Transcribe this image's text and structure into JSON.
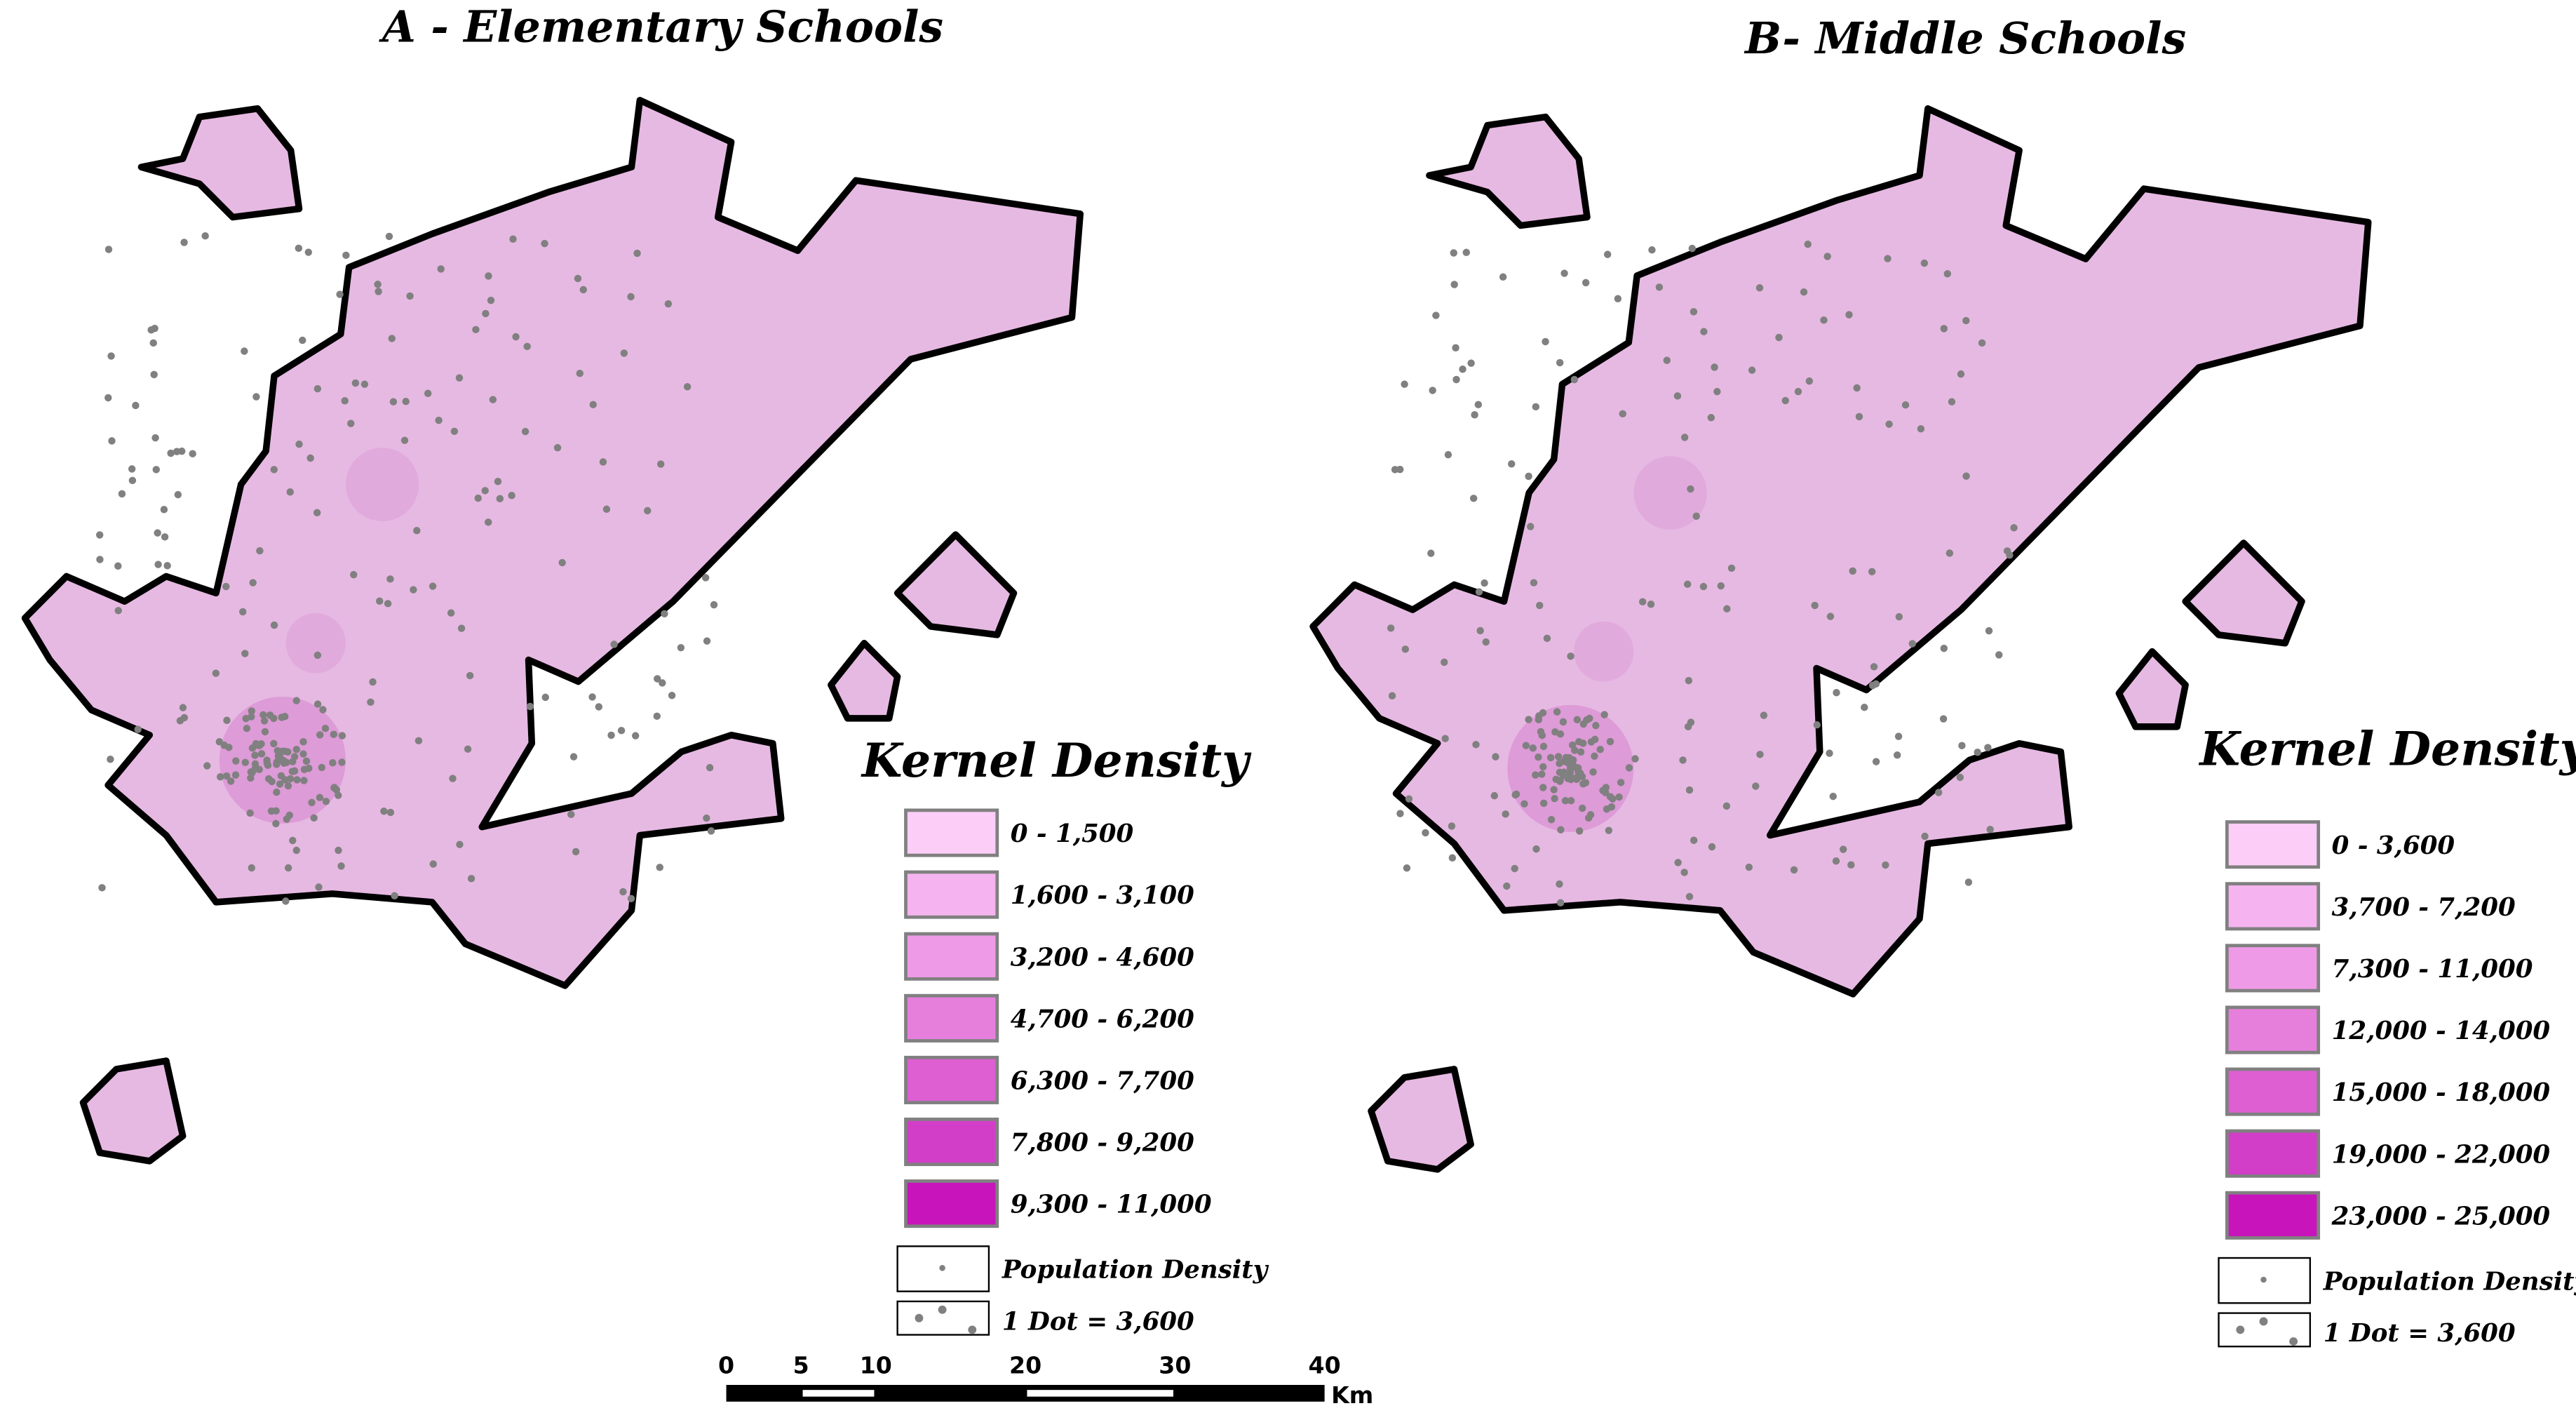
{
  "panels": [
    {
      "title": "A - Elementary Schools",
      "legend": {
        "title": "Kernel Density",
        "classes": [
          {
            "label": "0 - 1,500",
            "color": "#fbcdf7"
          },
          {
            "label": "1,600 - 3,100",
            "color": "#f5b4ef"
          },
          {
            "label": "3,200 - 4,600",
            "color": "#ee9ae6"
          },
          {
            "label": "4,700 - 6,200",
            "color": "#e67fdc"
          },
          {
            "label": "6,300 - 7,700",
            "color": "#dd5fd2"
          },
          {
            "label": "7,800 - 9,200",
            "color": "#d23ec7"
          },
          {
            "label": "9,300 - 11,000",
            "color": "#c814bb"
          }
        ],
        "dot_label": "Population Density",
        "dot_value": "1 Dot = 3,600"
      }
    },
    {
      "title": "B- Middle Schools",
      "legend": {
        "title": "Kernel Density",
        "classes": [
          {
            "label": "0 - 3,600",
            "color": "#fbcdf7"
          },
          {
            "label": "3,700 - 7,200",
            "color": "#f5b4ef"
          },
          {
            "label": "7,300 - 11,000",
            "color": "#ee9ae6"
          },
          {
            "label": "12,000 - 14,000",
            "color": "#e67fdc"
          },
          {
            "label": "15,000 - 18,000",
            "color": "#dd5fd2"
          },
          {
            "label": "19,000 - 22,000",
            "color": "#d23ec7"
          },
          {
            "label": "23,000 - 25,000",
            "color": "#c814bb"
          }
        ],
        "dot_label": "Population Density",
        "dot_value": "1 Dot = 3,600"
      }
    }
  ],
  "scale_bar": {
    "ticks": [
      0,
      5,
      10,
      20,
      30,
      40
    ],
    "unit": "Km"
  }
}
